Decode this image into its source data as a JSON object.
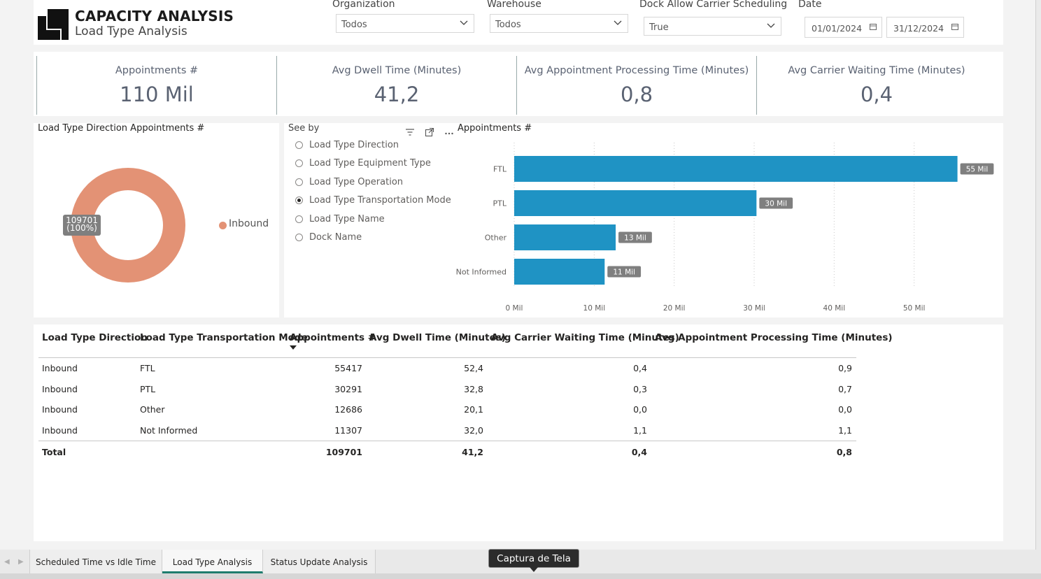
{
  "header": {
    "title": "CAPACITY ANALYSIS",
    "subtitle": "Load Type Analysis"
  },
  "filters": {
    "organization": {
      "label": "Organization",
      "value": "Todos"
    },
    "warehouse": {
      "label": "Warehouse",
      "value": "Todos"
    },
    "dock_scheduling": {
      "label": "Dock Allow Carrier Scheduling",
      "value": "True"
    },
    "date": {
      "label": "Date",
      "start": "01/01/2024",
      "end": "31/12/2024"
    }
  },
  "kpis": [
    {
      "label": "Appointments #",
      "value": "110 Mil"
    },
    {
      "label": "Avg Dwell Time (Minutes)",
      "value": "41,2"
    },
    {
      "label": "Avg Appointment Processing Time (Minutes)",
      "value": "0,8"
    },
    {
      "label": "Avg Carrier Waiting Time (Minutes)",
      "value": "0,4"
    }
  ],
  "donut": {
    "title": "Load Type Direction Appointments #",
    "badge_line1": "109701",
    "badge_line2": "(100%)",
    "legend": "Inbound",
    "color": "#e39275"
  },
  "slicer": {
    "title": "See by",
    "options": [
      {
        "label": "Load Type Direction",
        "selected": false
      },
      {
        "label": "Load Type Equipment Type",
        "selected": false
      },
      {
        "label": "Load Type Operation",
        "selected": false
      },
      {
        "label": "Load Type Transportation Mode",
        "selected": true
      },
      {
        "label": "Load Type Name",
        "selected": false
      },
      {
        "label": "Dock Name",
        "selected": false
      }
    ]
  },
  "chart_data": {
    "type": "bar",
    "orientation": "horizontal",
    "title": "Appointments #",
    "categories": [
      "FTL",
      "PTL",
      "Other",
      "Not Informed"
    ],
    "values": [
      55417,
      30291,
      12686,
      11307
    ],
    "data_labels": [
      "55 Mil",
      "30 Mil",
      "13 Mil",
      "11 Mil"
    ],
    "xlim": [
      0,
      60000
    ],
    "xticks": [
      0,
      10000,
      20000,
      30000,
      40000,
      50000
    ],
    "xtick_labels": [
      "0 Mil",
      "10 Mil",
      "20 Mil",
      "30 Mil",
      "40 Mil",
      "50 Mil"
    ],
    "grid": "vertical-dotted",
    "color": "#1f93c4"
  },
  "table": {
    "columns": [
      "Load Type Direction",
      "Load Type Transportation Mode",
      "Appointments #",
      "Avg Dwell Time (Minutes)",
      "Avg Carrier Waiting Time (Minutes)",
      "Avg Appointment Processing Time (Minutes)"
    ],
    "rows": [
      [
        "Inbound",
        "FTL",
        "55417",
        "52,4",
        "0,4",
        "0,9"
      ],
      [
        "Inbound",
        "PTL",
        "30291",
        "32,8",
        "0,3",
        "0,7"
      ],
      [
        "Inbound",
        "Other",
        "12686",
        "20,1",
        "0,0",
        "0,0"
      ],
      [
        "Inbound",
        "Not Informed",
        "11307",
        "32,0",
        "1,1",
        "1,1"
      ]
    ],
    "total": [
      "Total",
      "",
      "109701",
      "41,2",
      "0,4",
      "0,8"
    ]
  },
  "tabs": [
    {
      "label": "Scheduled Time vs Idle Time",
      "active": false
    },
    {
      "label": "Load Type Analysis",
      "active": true
    },
    {
      "label": "Status Update Analysis",
      "active": false
    }
  ],
  "tooltip": "Captura de Tela"
}
